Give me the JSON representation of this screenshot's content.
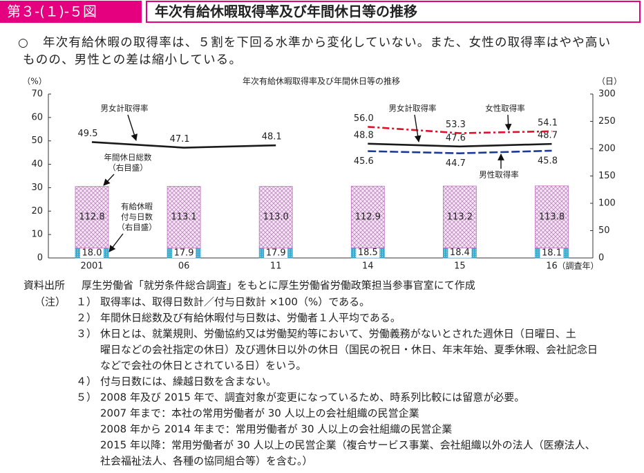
{
  "header": {
    "figure_no": "第３-(１)-５図",
    "title": "年次有給休暇取得率及び年間休日等の推移"
  },
  "summary": {
    "bullet": "○",
    "lines": [
      "年次有給休暇の取得率は、５割を下回る水準から変化していない。また、女性の取得率はやや高い",
      "ものの、男性との差は縮小している。"
    ]
  },
  "chart_data": {
    "type": "bar-line",
    "title": "年次有給休暇取得率及び年間休日等の推移",
    "ylabel": "（%）",
    "y2label": "（日）",
    "xlabel": "（調査年）",
    "categories": [
      "2001",
      "06",
      "11",
      "14",
      "15",
      "16"
    ],
    "ylim": [
      0,
      70
    ],
    "yticks": [
      0,
      10,
      20,
      30,
      40,
      50,
      60,
      70
    ],
    "y2lim": [
      0,
      300
    ],
    "y2ticks": [
      0,
      50,
      100,
      150,
      200,
      250,
      300
    ],
    "series": [
      {
        "name": "男女計取得率",
        "type": "line",
        "color": "#1a1a1a",
        "values": [
          49.5,
          47.1,
          48.1,
          48.8,
          47.6,
          48.7
        ]
      },
      {
        "name": "女性取得率",
        "type": "line",
        "color": "#e0102a",
        "values": [
          null,
          null,
          null,
          56.0,
          53.3,
          54.1
        ],
        "value_labels": [
          null,
          null,
          null,
          "56.0",
          "53.3",
          "54.1"
        ]
      },
      {
        "name": "男性取得率",
        "type": "line",
        "color": "#1a3a9a",
        "values": [
          null,
          null,
          null,
          45.6,
          44.7,
          45.8
        ]
      },
      {
        "name": [
          "有給休暇",
          "付与日数",
          "（右目盛）"
        ],
        "type": "bar",
        "axis": "y2",
        "color": "#3aa9d0",
        "values": [
          18.0,
          17.9,
          17.9,
          18.5,
          18.4,
          18.1
        ],
        "value_labels": [
          "18.0",
          "17.9",
          "17.9",
          "18.5",
          "18.4",
          "18.1"
        ]
      },
      {
        "name": [
          "年間休日総数",
          "（右目盛）"
        ],
        "type": "bar",
        "axis": "y2",
        "color": "#c070c0",
        "values": [
          112.8,
          113.1,
          113.0,
          112.9,
          113.2,
          113.8
        ],
        "value_labels": [
          "112.8",
          "113.1",
          "113.0",
          "112.9",
          "113.2",
          "113.8"
        ]
      }
    ]
  },
  "source": {
    "label": "資料出所",
    "text": "厚生労働省「就労条件総合調査」をもとに厚生労働省労働政策担当参事官室にて作成"
  },
  "notes": {
    "label": "（注）",
    "items": [
      {
        "num": "１）",
        "lines": [
          "取得率は、取得日数計／付与日数計 ×100（%）である。"
        ]
      },
      {
        "num": "２）",
        "lines": [
          "年間休日総数及び有給休暇付与日数は、労働者１人平均である。"
        ]
      },
      {
        "num": "３）",
        "lines": [
          "休日とは、就業規則、労働協約又は労働契約等において、労働義務がないとされた週休日（日曜日、土",
          "曜日などの会社指定の休日）及び週休日以外の休日（国民の祝日・休日、年末年始、夏季休暇、会社記念日",
          "などで会社の休日とされている日）をいう。"
        ]
      },
      {
        "num": "４）",
        "lines": [
          "付与日数には、繰越日数を含まない。"
        ]
      },
      {
        "num": "５）",
        "lines": [
          "2008 年及び 2015 年で、調査対象が変更になっているため、時系列比較には留意が必要。",
          "2007 年まで：本社の常用労働者が 30 人以上の会社組織の民営企業",
          "2008 年から 2014 年まで：常用労働者が 30 人以上の会社組織の民営企業",
          "2015 年以降：常用労働者が 30 人以上の民営企業（複合サービス事業、会社組織以外の法人（医療法人、",
          "社会福祉法人、各種の協同組合等）を含む。）"
        ]
      }
    ]
  }
}
